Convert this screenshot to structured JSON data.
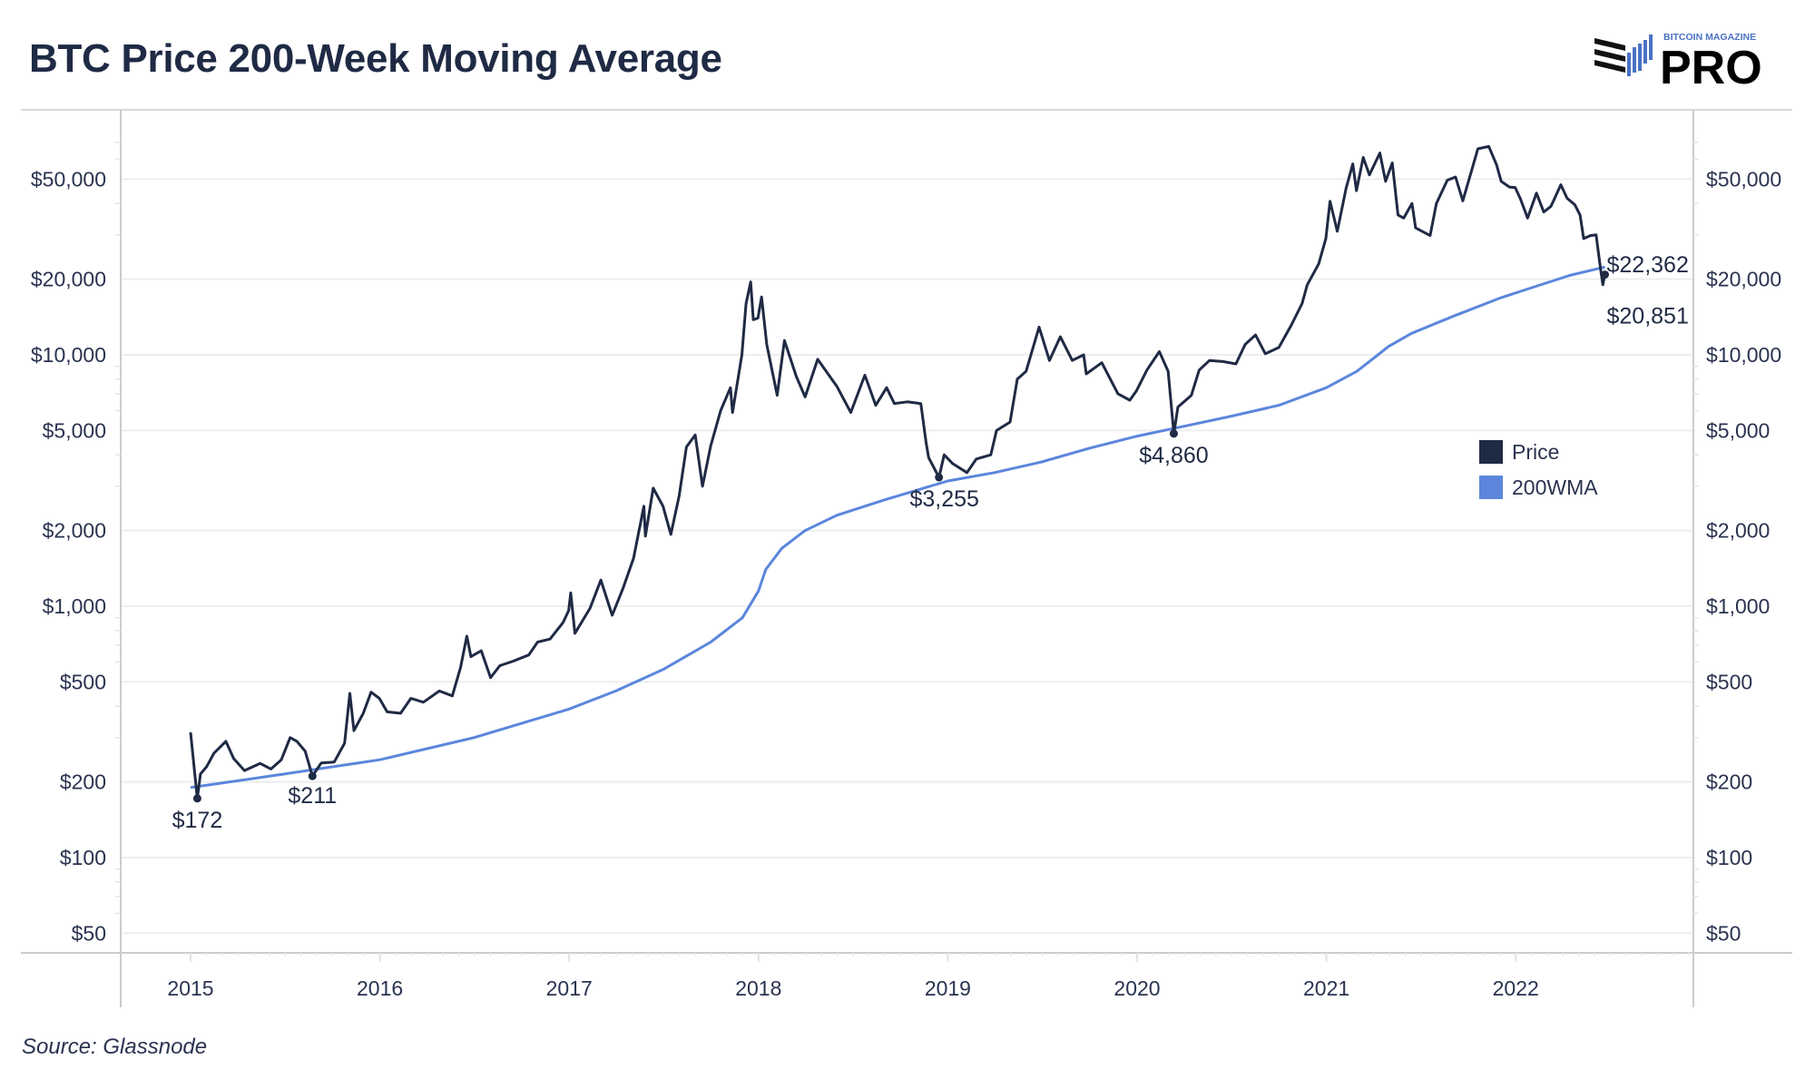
{
  "title": "BTC Price 200-Week Moving Average",
  "source": "Source: Glassnode",
  "logo": {
    "top_text": "BITCOIN MAGAZINE",
    "main_text": "PRO"
  },
  "colors": {
    "price": "#1f2a44",
    "wma": "#5b86dc",
    "grid": "#eeeeee",
    "axis": "#cccccc"
  },
  "chart_data": {
    "type": "line",
    "title": "BTC Price 200-Week Moving Average",
    "xlabel": "",
    "ylabel": "",
    "yscale": "log",
    "ylim": [
      40,
      80000
    ],
    "xlim": [
      "2014-07-15",
      "2022-12-31"
    ],
    "grid": true,
    "legend_position": "right",
    "y_ticks": [
      {
        "value": 50,
        "label": "$50"
      },
      {
        "value": 100,
        "label": "$100"
      },
      {
        "value": 200,
        "label": "$200"
      },
      {
        "value": 500,
        "label": "$500"
      },
      {
        "value": 1000,
        "label": "$1,000"
      },
      {
        "value": 2000,
        "label": "$2,000"
      },
      {
        "value": 5000,
        "label": "$5,000"
      },
      {
        "value": 10000,
        "label": "$10,000"
      },
      {
        "value": 20000,
        "label": "$20,000"
      },
      {
        "value": 50000,
        "label": "$50,000"
      }
    ],
    "x_ticks": [
      "2015",
      "2016",
      "2017",
      "2018",
      "2019",
      "2020",
      "2021",
      "2022"
    ],
    "series": [
      {
        "name": "Price",
        "color": "#1f2a44",
        "points": [
          [
            "2015-01-01",
            315
          ],
          [
            "2015-01-14",
            172
          ],
          [
            "2015-01-20",
            215
          ],
          [
            "2015-02-01",
            230
          ],
          [
            "2015-02-15",
            260
          ],
          [
            "2015-03-10",
            290
          ],
          [
            "2015-03-25",
            248
          ],
          [
            "2015-04-15",
            222
          ],
          [
            "2015-05-15",
            237
          ],
          [
            "2015-06-05",
            225
          ],
          [
            "2015-06-25",
            245
          ],
          [
            "2015-07-12",
            300
          ],
          [
            "2015-07-25",
            290
          ],
          [
            "2015-08-10",
            265
          ],
          [
            "2015-08-24",
            211
          ],
          [
            "2015-09-10",
            238
          ],
          [
            "2015-10-05",
            240
          ],
          [
            "2015-10-25",
            285
          ],
          [
            "2015-11-04",
            450
          ],
          [
            "2015-11-12",
            320
          ],
          [
            "2015-11-30",
            375
          ],
          [
            "2015-12-15",
            455
          ],
          [
            "2015-12-31",
            430
          ],
          [
            "2016-01-15",
            380
          ],
          [
            "2016-02-10",
            375
          ],
          [
            "2016-03-01",
            430
          ],
          [
            "2016-03-25",
            415
          ],
          [
            "2016-04-25",
            460
          ],
          [
            "2016-05-20",
            440
          ],
          [
            "2016-06-05",
            570
          ],
          [
            "2016-06-17",
            760
          ],
          [
            "2016-06-25",
            630
          ],
          [
            "2016-07-15",
            665
          ],
          [
            "2016-08-02",
            520
          ],
          [
            "2016-08-20",
            580
          ],
          [
            "2016-09-15",
            605
          ],
          [
            "2016-10-15",
            640
          ],
          [
            "2016-11-01",
            720
          ],
          [
            "2016-11-25",
            740
          ],
          [
            "2016-12-20",
            860
          ],
          [
            "2016-12-31",
            960
          ],
          [
            "2017-01-04",
            1130
          ],
          [
            "2017-01-12",
            780
          ],
          [
            "2017-02-10",
            980
          ],
          [
            "2017-03-03",
            1270
          ],
          [
            "2017-03-25",
            920
          ],
          [
            "2017-04-15",
            1180
          ],
          [
            "2017-05-05",
            1550
          ],
          [
            "2017-05-25",
            2500
          ],
          [
            "2017-05-28",
            1900
          ],
          [
            "2017-06-12",
            2950
          ],
          [
            "2017-07-01",
            2500
          ],
          [
            "2017-07-16",
            1930
          ],
          [
            "2017-08-01",
            2750
          ],
          [
            "2017-08-15",
            4300
          ],
          [
            "2017-09-01",
            4800
          ],
          [
            "2017-09-15",
            3000
          ],
          [
            "2017-10-01",
            4350
          ],
          [
            "2017-10-20",
            6000
          ],
          [
            "2017-11-08",
            7400
          ],
          [
            "2017-11-12",
            5900
          ],
          [
            "2017-11-30",
            10000
          ],
          [
            "2017-12-08",
            16000
          ],
          [
            "2017-12-17",
            19500
          ],
          [
            "2017-12-22",
            13800
          ],
          [
            "2017-12-31",
            14000
          ],
          [
            "2018-01-07",
            17000
          ],
          [
            "2018-01-17",
            11000
          ],
          [
            "2018-02-06",
            6900
          ],
          [
            "2018-02-20",
            11400
          ],
          [
            "2018-03-15",
            8200
          ],
          [
            "2018-04-01",
            6800
          ],
          [
            "2018-04-25",
            9600
          ],
          [
            "2018-05-15",
            8400
          ],
          [
            "2018-06-01",
            7500
          ],
          [
            "2018-06-28",
            5900
          ],
          [
            "2018-07-25",
            8300
          ],
          [
            "2018-08-15",
            6300
          ],
          [
            "2018-09-05",
            7400
          ],
          [
            "2018-09-20",
            6400
          ],
          [
            "2018-10-15",
            6500
          ],
          [
            "2018-11-10",
            6400
          ],
          [
            "2018-11-20",
            4500
          ],
          [
            "2018-11-25",
            3900
          ],
          [
            "2018-12-15",
            3255
          ],
          [
            "2018-12-25",
            4000
          ],
          [
            "2019-01-10",
            3700
          ],
          [
            "2019-02-07",
            3400
          ],
          [
            "2019-02-25",
            3850
          ],
          [
            "2019-03-25",
            4000
          ],
          [
            "2019-04-05",
            5000
          ],
          [
            "2019-05-01",
            5400
          ],
          [
            "2019-05-15",
            8000
          ],
          [
            "2019-06-01",
            8600
          ],
          [
            "2019-06-26",
            12900
          ],
          [
            "2019-07-16",
            9500
          ],
          [
            "2019-08-06",
            11800
          ],
          [
            "2019-08-29",
            9500
          ],
          [
            "2019-09-20",
            10000
          ],
          [
            "2019-09-25",
            8400
          ],
          [
            "2019-10-25",
            9300
          ],
          [
            "2019-11-25",
            7000
          ],
          [
            "2019-12-18",
            6600
          ],
          [
            "2019-12-31",
            7200
          ],
          [
            "2020-01-20",
            8700
          ],
          [
            "2020-02-13",
            10300
          ],
          [
            "2020-03-01",
            8600
          ],
          [
            "2020-03-12",
            4860
          ],
          [
            "2020-03-20",
            6200
          ],
          [
            "2020-04-15",
            6900
          ],
          [
            "2020-04-30",
            8700
          ],
          [
            "2020-05-20",
            9500
          ],
          [
            "2020-06-15",
            9400
          ],
          [
            "2020-07-10",
            9200
          ],
          [
            "2020-07-28",
            11000
          ],
          [
            "2020-08-17",
            12000
          ],
          [
            "2020-09-05",
            10100
          ],
          [
            "2020-10-01",
            10700
          ],
          [
            "2020-10-25",
            13100
          ],
          [
            "2020-11-15",
            16000
          ],
          [
            "2020-11-25",
            19000
          ],
          [
            "2020-12-17",
            23000
          ],
          [
            "2020-12-31",
            29000
          ],
          [
            "2021-01-08",
            40800
          ],
          [
            "2021-01-22",
            31000
          ],
          [
            "2021-02-08",
            46000
          ],
          [
            "2021-02-21",
            57500
          ],
          [
            "2021-02-28",
            45000
          ],
          [
            "2021-03-13",
            61000
          ],
          [
            "2021-03-25",
            52000
          ],
          [
            "2021-04-14",
            63500
          ],
          [
            "2021-04-25",
            49000
          ],
          [
            "2021-05-08",
            58000
          ],
          [
            "2021-05-19",
            36000
          ],
          [
            "2021-05-30",
            35000
          ],
          [
            "2021-06-15",
            40000
          ],
          [
            "2021-06-22",
            32000
          ],
          [
            "2021-07-20",
            29800
          ],
          [
            "2021-08-01",
            40000
          ],
          [
            "2021-08-22",
            49500
          ],
          [
            "2021-09-07",
            51000
          ],
          [
            "2021-09-21",
            41000
          ],
          [
            "2021-10-05",
            51500
          ],
          [
            "2021-10-20",
            66000
          ],
          [
            "2021-11-10",
            67500
          ],
          [
            "2021-11-25",
            57000
          ],
          [
            "2021-12-04",
            49000
          ],
          [
            "2021-12-20",
            46500
          ],
          [
            "2021-12-31",
            46300
          ],
          [
            "2022-01-10",
            41800
          ],
          [
            "2022-01-24",
            35000
          ],
          [
            "2022-02-10",
            44000
          ],
          [
            "2022-02-24",
            37000
          ],
          [
            "2022-03-10",
            39000
          ],
          [
            "2022-03-29",
            47500
          ],
          [
            "2022-04-10",
            42000
          ],
          [
            "2022-04-25",
            39500
          ],
          [
            "2022-05-05",
            36000
          ],
          [
            "2022-05-12",
            29000
          ],
          [
            "2022-05-25",
            29800
          ],
          [
            "2022-06-05",
            30000
          ],
          [
            "2022-06-13",
            22400
          ],
          [
            "2022-06-18",
            19000
          ],
          [
            "2022-06-22",
            20851
          ]
        ]
      },
      {
        "name": "200WMA",
        "color": "#5b86dc",
        "points": [
          [
            "2015-01-01",
            190
          ],
          [
            "2015-07-01",
            215
          ],
          [
            "2016-01-01",
            245
          ],
          [
            "2016-07-01",
            300
          ],
          [
            "2017-01-01",
            390
          ],
          [
            "2017-04-01",
            460
          ],
          [
            "2017-07-01",
            560
          ],
          [
            "2017-10-01",
            720
          ],
          [
            "2017-12-01",
            900
          ],
          [
            "2018-01-01",
            1150
          ],
          [
            "2018-01-15",
            1400
          ],
          [
            "2018-02-15",
            1700
          ],
          [
            "2018-04-01",
            2000
          ],
          [
            "2018-06-01",
            2300
          ],
          [
            "2018-09-01",
            2650
          ],
          [
            "2019-01-01",
            3150
          ],
          [
            "2019-04-01",
            3400
          ],
          [
            "2019-07-01",
            3750
          ],
          [
            "2019-10-01",
            4250
          ],
          [
            "2020-01-01",
            4750
          ],
          [
            "2020-04-01",
            5200
          ],
          [
            "2020-07-01",
            5700
          ],
          [
            "2020-10-01",
            6300
          ],
          [
            "2021-01-01",
            7400
          ],
          [
            "2021-03-01",
            8600
          ],
          [
            "2021-05-01",
            10800
          ],
          [
            "2021-06-15",
            12200
          ],
          [
            "2021-09-01",
            14200
          ],
          [
            "2021-12-01",
            16800
          ],
          [
            "2022-02-01",
            18500
          ],
          [
            "2022-04-15",
            20700
          ],
          [
            "2022-06-22",
            22362
          ]
        ]
      }
    ],
    "annotations": [
      {
        "date": "2015-01-14",
        "value": 172,
        "label": "$172",
        "series": "Price"
      },
      {
        "date": "2015-08-24",
        "value": 211,
        "label": "$211",
        "series": "Price"
      },
      {
        "date": "2018-12-15",
        "value": 3255,
        "label": "$3,255",
        "series": "Price"
      },
      {
        "date": "2020-03-12",
        "value": 4860,
        "label": "$4,860",
        "series": "Price"
      },
      {
        "date": "2022-06-22",
        "value": 20851,
        "label": "$20,851",
        "series": "Price"
      },
      {
        "date": "2022-06-22",
        "value": 22362,
        "label": "$22,362",
        "series": "200WMA"
      }
    ]
  }
}
